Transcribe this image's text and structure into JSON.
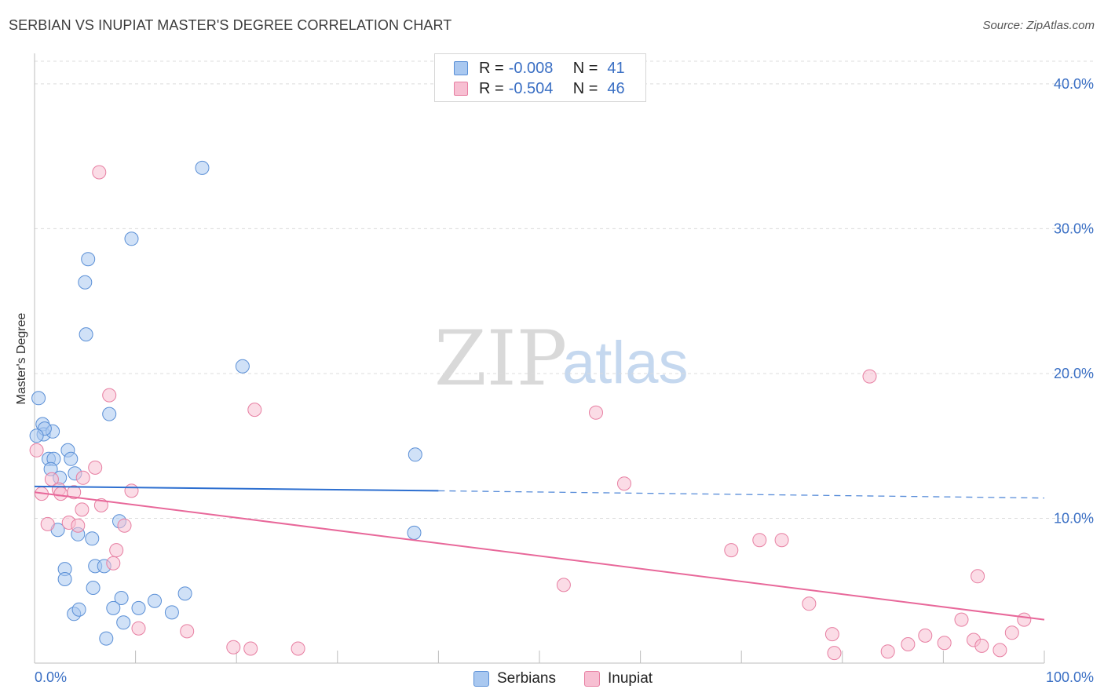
{
  "title": "SERBIAN VS INUPIAT MASTER'S DEGREE CORRELATION CHART",
  "source": "Source: ZipAtlas.com",
  "watermark": {
    "part1": "ZIP",
    "part2": "atlas"
  },
  "legend": {
    "rows": [
      {
        "r_label": "R =",
        "r_value": "-0.008",
        "n_label": "N =",
        "n_value": "41",
        "color": "#a9c8f0",
        "border": "#5a8fd6"
      },
      {
        "r_label": "R =",
        "r_value": "-0.504",
        "n_label": "N =",
        "n_value": "46",
        "color": "#f7bfd2",
        "border": "#e77fa2"
      }
    ]
  },
  "bottom_legend": {
    "serbians": "Serbians",
    "inupiat": "Inupiat"
  },
  "chart_data": {
    "type": "scatter",
    "title": "SERBIAN VS INUPIAT MASTER'S DEGREE CORRELATION CHART",
    "xlabel": "",
    "ylabel": "Master's Degree",
    "xlim": [
      0,
      100
    ],
    "ylim": [
      0,
      42
    ],
    "x_tick_labels": [
      "0.0%",
      "100.0%"
    ],
    "y_ticks": [
      10,
      20,
      30,
      40
    ],
    "y_tick_labels": [
      "10.0%",
      "20.0%",
      "30.0%",
      "40.0%"
    ],
    "x_minor_ticks": [
      10,
      20,
      30,
      40,
      50,
      60,
      70,
      80,
      90,
      100
    ],
    "series": [
      {
        "name": "Serbians",
        "color": "#a9c8f0",
        "stroke": "#5a8fd6",
        "trend": {
          "x_start": 0,
          "y_start": 12.2,
          "x_solid_end": 40,
          "y_solid_end": 11.9,
          "x_end": 100,
          "y_end": 11.4,
          "color": "#2d6fd0"
        },
        "points": [
          [
            0.4,
            18.3
          ],
          [
            0.8,
            16.5
          ],
          [
            0.9,
            15.8
          ],
          [
            1.8,
            16.0
          ],
          [
            1.0,
            16.2
          ],
          [
            1.4,
            14.1
          ],
          [
            1.9,
            14.1
          ],
          [
            3.3,
            14.7
          ],
          [
            3.6,
            14.1
          ],
          [
            1.6,
            13.4
          ],
          [
            2.5,
            12.8
          ],
          [
            4.0,
            13.1
          ],
          [
            2.3,
            9.2
          ],
          [
            4.3,
            8.9
          ],
          [
            5.7,
            8.6
          ],
          [
            8.4,
            9.8
          ],
          [
            7.4,
            17.2
          ],
          [
            5.1,
            22.7
          ],
          [
            5.0,
            26.3
          ],
          [
            5.3,
            27.9
          ],
          [
            9.6,
            29.3
          ],
          [
            16.6,
            34.2
          ],
          [
            20.6,
            20.5
          ],
          [
            37.7,
            14.4
          ],
          [
            37.6,
            9.0
          ],
          [
            3.0,
            6.5
          ],
          [
            3.0,
            5.8
          ],
          [
            6.0,
            6.7
          ],
          [
            6.9,
            6.7
          ],
          [
            5.8,
            5.2
          ],
          [
            8.6,
            4.5
          ],
          [
            3.9,
            3.4
          ],
          [
            4.4,
            3.7
          ],
          [
            7.8,
            3.8
          ],
          [
            10.3,
            3.8
          ],
          [
            11.9,
            4.3
          ],
          [
            13.6,
            3.5
          ],
          [
            14.9,
            4.8
          ],
          [
            8.8,
            2.8
          ],
          [
            7.1,
            1.7
          ],
          [
            0.2,
            15.7
          ]
        ]
      },
      {
        "name": "Inupiat",
        "color": "#f7bfd2",
        "stroke": "#e77fa2",
        "trend": {
          "x_start": 0,
          "y_start": 11.8,
          "x_end": 100,
          "y_end": 3.0,
          "color": "#e8689a"
        },
        "points": [
          [
            0.2,
            14.7
          ],
          [
            0.7,
            11.7
          ],
          [
            1.7,
            12.7
          ],
          [
            2.4,
            12.0
          ],
          [
            2.6,
            11.7
          ],
          [
            3.9,
            11.8
          ],
          [
            4.8,
            12.8
          ],
          [
            6.0,
            13.5
          ],
          [
            4.7,
            10.6
          ],
          [
            6.6,
            10.9
          ],
          [
            1.3,
            9.6
          ],
          [
            3.4,
            9.7
          ],
          [
            4.3,
            9.5
          ],
          [
            8.9,
            9.5
          ],
          [
            9.6,
            11.9
          ],
          [
            8.1,
            7.8
          ],
          [
            7.8,
            6.9
          ],
          [
            7.4,
            18.5
          ],
          [
            6.4,
            33.9
          ],
          [
            10.3,
            2.4
          ],
          [
            15.1,
            2.2
          ],
          [
            19.7,
            1.1
          ],
          [
            21.4,
            1.0
          ],
          [
            26.1,
            1.0
          ],
          [
            21.8,
            17.5
          ],
          [
            52.4,
            5.4
          ],
          [
            55.6,
            17.3
          ],
          [
            58.4,
            12.4
          ],
          [
            69.0,
            7.8
          ],
          [
            71.8,
            8.5
          ],
          [
            74.0,
            8.5
          ],
          [
            76.7,
            4.1
          ],
          [
            79.0,
            2.0
          ],
          [
            79.2,
            0.7
          ],
          [
            82.7,
            19.8
          ],
          [
            84.5,
            0.8
          ],
          [
            86.5,
            1.3
          ],
          [
            88.2,
            1.9
          ],
          [
            90.1,
            1.4
          ],
          [
            91.8,
            3.0
          ],
          [
            93.0,
            1.6
          ],
          [
            93.4,
            6.0
          ],
          [
            93.8,
            1.2
          ],
          [
            95.6,
            0.9
          ],
          [
            96.8,
            2.1
          ],
          [
            98.0,
            3.0
          ]
        ]
      }
    ]
  }
}
